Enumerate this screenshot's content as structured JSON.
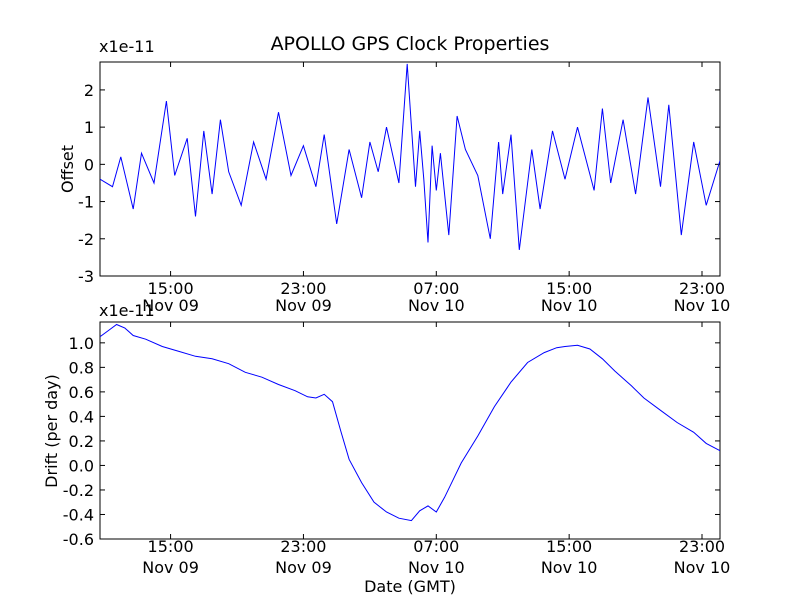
{
  "chart_data": [
    {
      "type": "line",
      "title": "APOLLO GPS Clock Properties",
      "xlabel": "",
      "ylabel": "Offset",
      "y_exponent_label": "x1e-11",
      "ylim": [
        -3,
        2.75
      ],
      "yticks": [
        {
          "value": -3,
          "label": "-3"
        },
        {
          "value": -2,
          "label": "-2"
        },
        {
          "value": -1,
          "label": "-1"
        },
        {
          "value": 0,
          "label": "0"
        },
        {
          "value": 1,
          "label": "1"
        },
        {
          "value": 2,
          "label": "2"
        }
      ],
      "xlim": [
        "2009-11-09T10:45",
        "2009-11-11T00:05"
      ],
      "xticks": [
        {
          "value": "2009-11-09T15:00",
          "time": "15:00",
          "date": "Nov 09"
        },
        {
          "value": "2009-11-09T23:00",
          "time": "23:00",
          "date": "Nov 09"
        },
        {
          "value": "2009-11-10T07:00",
          "time": "07:00",
          "date": "Nov 10"
        },
        {
          "value": "2009-11-10T15:00",
          "time": "15:00",
          "date": "Nov 10"
        },
        {
          "value": "2009-11-10T23:00",
          "time": "23:00",
          "date": "Nov 10"
        }
      ],
      "grid": false,
      "line_color": "#0000ff",
      "series": [
        {
          "x": [
            "2009-11-09T10:45",
            "2009-11-09T11:30",
            "2009-11-09T12:00",
            "2009-11-09T12:45",
            "2009-11-09T13:15",
            "2009-11-09T14:00",
            "2009-11-09T14:45",
            "2009-11-09T15:15",
            "2009-11-09T16:00",
            "2009-11-09T16:30",
            "2009-11-09T17:00",
            "2009-11-09T17:30",
            "2009-11-09T18:00",
            "2009-11-09T18:30",
            "2009-11-09T19:15",
            "2009-11-09T20:00",
            "2009-11-09T20:45",
            "2009-11-09T21:30",
            "2009-11-09T22:15",
            "2009-11-09T23:00",
            "2009-11-09T23:45",
            "2009-11-10T00:15",
            "2009-11-10T01:00",
            "2009-11-10T01:45",
            "2009-11-10T02:30",
            "2009-11-10T03:00",
            "2009-11-10T03:30",
            "2009-11-10T04:00",
            "2009-11-10T04:45",
            "2009-11-10T05:15",
            "2009-11-10T05:45",
            "2009-11-10T06:00",
            "2009-11-10T06:15",
            "2009-11-10T06:30",
            "2009-11-10T06:45",
            "2009-11-10T07:00",
            "2009-11-10T07:15",
            "2009-11-10T07:45",
            "2009-11-10T08:15",
            "2009-11-10T08:45",
            "2009-11-10T09:30",
            "2009-11-10T10:15",
            "2009-11-10T10:45",
            "2009-11-10T11:00",
            "2009-11-10T11:30",
            "2009-11-10T12:00",
            "2009-11-10T12:45",
            "2009-11-10T13:15",
            "2009-11-10T14:00",
            "2009-11-10T14:45",
            "2009-11-10T15:30",
            "2009-11-10T16:30",
            "2009-11-10T17:00",
            "2009-11-10T17:30",
            "2009-11-10T18:15",
            "2009-11-10T19:00",
            "2009-11-10T19:45",
            "2009-11-10T20:30",
            "2009-11-10T21:00",
            "2009-11-10T21:45",
            "2009-11-10T22:30",
            "2009-11-10T23:15",
            "2009-11-11T00:05"
          ],
          "values": [
            -0.4,
            -0.6,
            0.2,
            -1.2,
            0.3,
            -0.5,
            1.7,
            -0.3,
            0.7,
            -1.4,
            0.9,
            -0.8,
            1.2,
            -0.2,
            -1.1,
            0.6,
            -0.4,
            1.4,
            -0.3,
            0.5,
            -0.6,
            0.8,
            -1.6,
            0.4,
            -0.9,
            0.6,
            -0.2,
            1.0,
            -0.5,
            2.7,
            -0.6,
            0.9,
            -0.4,
            -2.1,
            0.5,
            -0.7,
            0.3,
            -1.9,
            1.3,
            0.4,
            -0.3,
            -2.0,
            0.6,
            -0.8,
            0.8,
            -2.3,
            0.4,
            -1.2,
            0.9,
            -0.4,
            1.0,
            -0.7,
            1.5,
            -0.5,
            1.2,
            -0.8,
            1.8,
            -0.6,
            1.6,
            -1.9,
            0.6,
            -1.1,
            0.1
          ]
        }
      ]
    },
    {
      "type": "line",
      "title": "",
      "xlabel": "Date (GMT)",
      "ylabel": "Drift (per day)",
      "y_exponent_label": "x1e-11",
      "ylim": [
        -0.6,
        1.17
      ],
      "yticks": [
        {
          "value": -0.6,
          "label": "-0.6"
        },
        {
          "value": -0.4,
          "label": "-0.4"
        },
        {
          "value": -0.2,
          "label": "-0.2"
        },
        {
          "value": 0.0,
          "label": "0.0"
        },
        {
          "value": 0.2,
          "label": "0.2"
        },
        {
          "value": 0.4,
          "label": "0.4"
        },
        {
          "value": 0.6,
          "label": "0.6"
        },
        {
          "value": 0.8,
          "label": "0.8"
        },
        {
          "value": 1.0,
          "label": "1.0"
        }
      ],
      "xlim": [
        "2009-11-09T10:45",
        "2009-11-11T00:05"
      ],
      "xticks": [
        {
          "value": "2009-11-09T15:00",
          "time": "15:00",
          "date": "Nov 09"
        },
        {
          "value": "2009-11-09T23:00",
          "time": "23:00",
          "date": "Nov 09"
        },
        {
          "value": "2009-11-10T07:00",
          "time": "07:00",
          "date": "Nov 10"
        },
        {
          "value": "2009-11-10T15:00",
          "time": "15:00",
          "date": "Nov 10"
        },
        {
          "value": "2009-11-10T23:00",
          "time": "23:00",
          "date": "Nov 10"
        }
      ],
      "grid": false,
      "line_color": "#0000ff",
      "series": [
        {
          "x": [
            "2009-11-09T10:45",
            "2009-11-09T11:15",
            "2009-11-09T11:45",
            "2009-11-09T12:15",
            "2009-11-09T12:45",
            "2009-11-09T13:30",
            "2009-11-09T14:30",
            "2009-11-09T15:30",
            "2009-11-09T16:30",
            "2009-11-09T17:30",
            "2009-11-09T18:30",
            "2009-11-09T19:30",
            "2009-11-09T20:30",
            "2009-11-09T21:30",
            "2009-11-09T22:30",
            "2009-11-09T23:15",
            "2009-11-09T23:45",
            "2009-11-10T00:15",
            "2009-11-10T00:45",
            "2009-11-10T01:15",
            "2009-11-10T01:45",
            "2009-11-10T02:30",
            "2009-11-10T03:15",
            "2009-11-10T04:00",
            "2009-11-10T04:45",
            "2009-11-10T05:30",
            "2009-11-10T06:00",
            "2009-11-10T06:30",
            "2009-11-10T07:00",
            "2009-11-10T07:30",
            "2009-11-10T08:00",
            "2009-11-10T08:30",
            "2009-11-10T09:30",
            "2009-11-10T10:30",
            "2009-11-10T11:30",
            "2009-11-10T12:30",
            "2009-11-10T13:30",
            "2009-11-10T14:15",
            "2009-11-10T14:45",
            "2009-11-10T15:30",
            "2009-11-10T16:15",
            "2009-11-10T17:00",
            "2009-11-10T17:45",
            "2009-11-10T18:45",
            "2009-11-10T19:30",
            "2009-11-10T20:30",
            "2009-11-10T21:30",
            "2009-11-10T22:30",
            "2009-11-10T23:15",
            "2009-11-11T00:05"
          ],
          "values": [
            1.05,
            1.1,
            1.15,
            1.12,
            1.06,
            1.03,
            0.97,
            0.93,
            0.89,
            0.87,
            0.83,
            0.76,
            0.72,
            0.66,
            0.61,
            0.56,
            0.55,
            0.58,
            0.52,
            0.28,
            0.05,
            -0.14,
            -0.3,
            -0.38,
            -0.43,
            -0.45,
            -0.37,
            -0.33,
            -0.38,
            -0.26,
            -0.12,
            0.02,
            0.24,
            0.48,
            0.68,
            0.84,
            0.92,
            0.96,
            0.97,
            0.98,
            0.95,
            0.87,
            0.77,
            0.65,
            0.55,
            0.45,
            0.35,
            0.27,
            0.18,
            0.12
          ]
        }
      ]
    }
  ]
}
